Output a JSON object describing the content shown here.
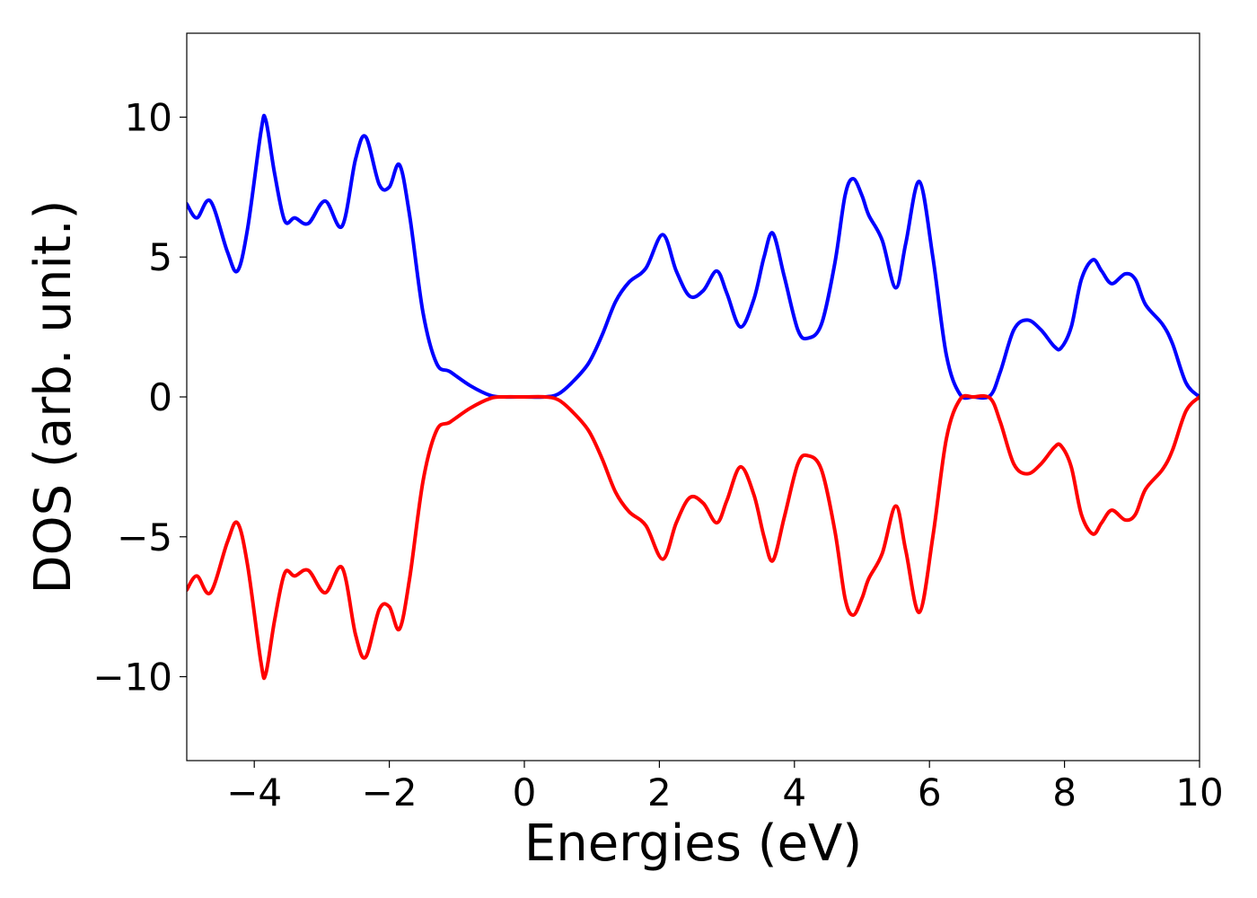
{
  "chart_data": {
    "type": "line",
    "title": "",
    "xlabel": "Energies (eV)",
    "ylabel": "DOS (arb. unit.)",
    "xlim": [
      -5,
      10
    ],
    "ylim": [
      -13,
      13
    ],
    "grid": false,
    "x_ticks": [
      -4,
      -2,
      0,
      2,
      4,
      6,
      8,
      10
    ],
    "x_tick_labels": [
      "−4",
      "−2",
      "0",
      "2",
      "4",
      "6",
      "8",
      "10"
    ],
    "y_ticks": [
      -10,
      -5,
      0,
      5,
      10
    ],
    "y_tick_labels": [
      "−10",
      "−5",
      "0",
      "5",
      "10"
    ],
    "series": [
      {
        "color": "#0000ff",
        "x": [
          -5.0,
          -4.85,
          -4.65,
          -4.4,
          -4.25,
          -4.1,
          -3.9,
          -3.83,
          -3.7,
          -3.55,
          -3.4,
          -3.2,
          -2.95,
          -2.7,
          -2.5,
          -2.35,
          -2.15,
          -2.0,
          -1.85,
          -1.7,
          -1.5,
          -1.3,
          -1.1,
          -0.8,
          -0.5,
          -0.3,
          0.0,
          0.3,
          0.5,
          0.7,
          0.95,
          1.15,
          1.35,
          1.55,
          1.8,
          2.05,
          2.25,
          2.45,
          2.65,
          2.85,
          3.0,
          3.2,
          3.4,
          3.55,
          3.68,
          3.85,
          4.05,
          4.2,
          4.4,
          4.6,
          4.75,
          4.87,
          5.0,
          5.1,
          5.3,
          5.5,
          5.65,
          5.85,
          6.05,
          6.25,
          6.45,
          6.65,
          6.9,
          7.05,
          7.25,
          7.45,
          7.65,
          7.85,
          7.95,
          8.1,
          8.25,
          8.42,
          8.55,
          8.7,
          8.9,
          9.05,
          9.2,
          9.45,
          9.6,
          9.8,
          10.0
        ],
        "y": [
          6.9,
          6.4,
          7.0,
          5.2,
          4.5,
          6.0,
          9.5,
          9.9,
          8.0,
          6.3,
          6.4,
          6.2,
          7.0,
          6.1,
          8.5,
          9.3,
          7.6,
          7.5,
          8.3,
          6.5,
          3.0,
          1.2,
          0.9,
          0.4,
          0.05,
          0.0,
          0.0,
          0.0,
          0.1,
          0.5,
          1.2,
          2.2,
          3.4,
          4.1,
          4.6,
          5.8,
          4.5,
          3.6,
          3.8,
          4.5,
          3.7,
          2.5,
          3.5,
          5.0,
          5.85,
          4.3,
          2.4,
          2.1,
          2.6,
          4.8,
          7.2,
          7.8,
          7.2,
          6.5,
          5.6,
          3.9,
          5.5,
          7.7,
          5.0,
          1.5,
          0.1,
          0.0,
          0.05,
          0.9,
          2.4,
          2.75,
          2.4,
          1.8,
          1.75,
          2.5,
          4.2,
          4.9,
          4.5,
          4.05,
          4.4,
          4.2,
          3.3,
          2.6,
          1.9,
          0.5,
          0.0
        ]
      },
      {
        "color": "#ff0000",
        "x": [
          -5.0,
          -4.85,
          -4.65,
          -4.4,
          -4.25,
          -4.1,
          -3.9,
          -3.83,
          -3.7,
          -3.55,
          -3.4,
          -3.2,
          -2.95,
          -2.7,
          -2.5,
          -2.35,
          -2.15,
          -2.0,
          -1.85,
          -1.7,
          -1.5,
          -1.3,
          -1.1,
          -0.8,
          -0.5,
          -0.3,
          0.0,
          0.3,
          0.5,
          0.7,
          0.95,
          1.15,
          1.35,
          1.55,
          1.8,
          2.05,
          2.25,
          2.45,
          2.65,
          2.85,
          3.0,
          3.2,
          3.4,
          3.55,
          3.68,
          3.85,
          4.05,
          4.2,
          4.4,
          4.6,
          4.75,
          4.87,
          5.0,
          5.1,
          5.3,
          5.5,
          5.65,
          5.85,
          6.05,
          6.25,
          6.45,
          6.65,
          6.9,
          7.05,
          7.25,
          7.45,
          7.65,
          7.85,
          7.95,
          8.1,
          8.25,
          8.42,
          8.55,
          8.7,
          8.9,
          9.05,
          9.2,
          9.45,
          9.6,
          9.8,
          10.0
        ],
        "y": [
          -6.9,
          -6.4,
          -7.0,
          -5.2,
          -4.5,
          -6.0,
          -9.5,
          -9.9,
          -8.0,
          -6.3,
          -6.4,
          -6.2,
          -7.0,
          -6.1,
          -8.5,
          -9.3,
          -7.6,
          -7.5,
          -8.3,
          -6.5,
          -3.0,
          -1.2,
          -0.9,
          -0.4,
          -0.05,
          0.0,
          0.0,
          0.0,
          -0.1,
          -0.5,
          -1.2,
          -2.2,
          -3.4,
          -4.1,
          -4.6,
          -5.8,
          -4.5,
          -3.6,
          -3.8,
          -4.5,
          -3.7,
          -2.5,
          -3.5,
          -5.0,
          -5.85,
          -4.3,
          -2.4,
          -2.1,
          -2.6,
          -4.8,
          -7.2,
          -7.8,
          -7.2,
          -6.5,
          -5.6,
          -3.9,
          -5.5,
          -7.7,
          -5.0,
          -1.5,
          -0.1,
          0.0,
          -0.05,
          -0.9,
          -2.4,
          -2.75,
          -2.4,
          -1.8,
          -1.75,
          -2.5,
          -4.2,
          -4.9,
          -4.5,
          -4.05,
          -4.4,
          -4.2,
          -3.3,
          -2.6,
          -1.9,
          -0.5,
          0.0
        ]
      }
    ]
  }
}
